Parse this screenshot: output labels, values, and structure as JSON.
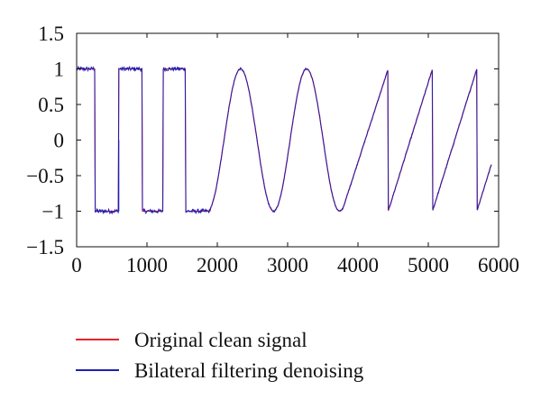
{
  "chart_data": {
    "type": "line",
    "title": "",
    "xlabel": "",
    "ylabel": "",
    "xlim": [
      0,
      6000
    ],
    "ylim": [
      -1.5,
      1.5
    ],
    "x_ticks": [
      0,
      1000,
      2000,
      3000,
      4000,
      5000,
      6000
    ],
    "x_tick_labels": [
      "0",
      "1000",
      "2000",
      "3000",
      "4000",
      "5000",
      "6000"
    ],
    "y_ticks": [
      1.5,
      1,
      0.5,
      0,
      -0.5,
      -1,
      -1.5
    ],
    "y_tick_labels": [
      "1.5",
      "1",
      "0.5",
      "0",
      "−0.5",
      "−1",
      "−1.5"
    ],
    "grid": false,
    "legend_position": "below",
    "x_end": 5900,
    "series": [
      {
        "name": "Original clean signal",
        "color": "#e8242a",
        "description_segments": [
          {
            "type": "square",
            "x_start": 0,
            "x_end": 1900,
            "high": 1,
            "low": -1,
            "transitions": [
              260,
              600,
              930,
              1230,
              1550
            ],
            "spike": {
              "x": 600,
              "y": 0
            }
          },
          {
            "type": "sine",
            "x_start": 1900,
            "x_end": 3800,
            "amplitude": 1,
            "period": 940,
            "peak_at": 2330
          },
          {
            "type": "sawtooth",
            "x_start": 3800,
            "x_end": 5900,
            "resets": [
              4430,
              5060,
              5690
            ],
            "min": -1,
            "max": 1
          }
        ]
      },
      {
        "name": "Bilateral filtering denoising",
        "color": "#1f1fb4",
        "noise": 0.025
      }
    ]
  }
}
